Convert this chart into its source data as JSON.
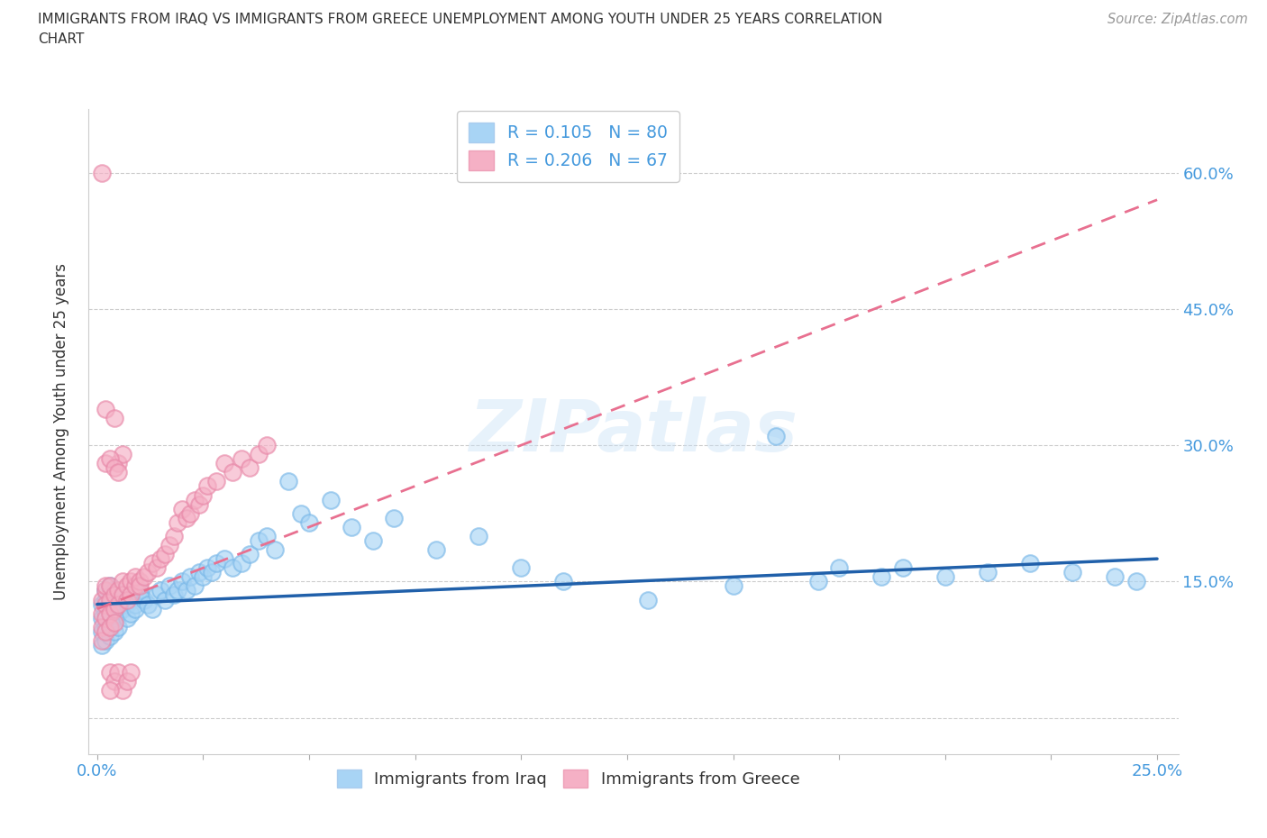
{
  "title": "IMMIGRANTS FROM IRAQ VS IMMIGRANTS FROM GREECE UNEMPLOYMENT AMONG YOUTH UNDER 25 YEARS CORRELATION\nCHART",
  "source_text": "Source: ZipAtlas.com",
  "ylabel": "Unemployment Among Youth under 25 years",
  "xlim": [
    -0.002,
    0.255
  ],
  "ylim": [
    -0.04,
    0.67
  ],
  "iraq_color": "#a8d4f5",
  "iraq_edge_color": "#7ab8e8",
  "greece_color": "#f5b0c5",
  "greece_edge_color": "#e888a8",
  "iraq_line_color": "#2060aa",
  "greece_line_color": "#e87090",
  "R_iraq": 0.105,
  "N_iraq": 80,
  "R_greece": 0.206,
  "N_greece": 67,
  "watermark": "ZIPatlas",
  "grid_color": "#cccccc",
  "tick_color": "#4499dd",
  "label_color": "#333333",
  "source_color": "#999999",
  "iraq_x": [
    0.001,
    0.001,
    0.001,
    0.001,
    0.002,
    0.002,
    0.002,
    0.002,
    0.002,
    0.003,
    0.003,
    0.003,
    0.003,
    0.003,
    0.004,
    0.004,
    0.004,
    0.004,
    0.005,
    0.005,
    0.005,
    0.006,
    0.006,
    0.007,
    0.007,
    0.008,
    0.008,
    0.009,
    0.009,
    0.01,
    0.01,
    0.011,
    0.012,
    0.013,
    0.014,
    0.015,
    0.016,
    0.017,
    0.018,
    0.019,
    0.02,
    0.021,
    0.022,
    0.023,
    0.024,
    0.025,
    0.026,
    0.027,
    0.028,
    0.03,
    0.032,
    0.034,
    0.036,
    0.038,
    0.04,
    0.042,
    0.045,
    0.048,
    0.05,
    0.055,
    0.06,
    0.065,
    0.07,
    0.08,
    0.09,
    0.1,
    0.11,
    0.13,
    0.15,
    0.17,
    0.19,
    0.2,
    0.21,
    0.22,
    0.23,
    0.24,
    0.16,
    0.175,
    0.185,
    0.245
  ],
  "iraq_y": [
    0.125,
    0.11,
    0.095,
    0.08,
    0.13,
    0.115,
    0.1,
    0.085,
    0.14,
    0.12,
    0.105,
    0.09,
    0.135,
    0.145,
    0.125,
    0.11,
    0.095,
    0.14,
    0.13,
    0.115,
    0.1,
    0.135,
    0.12,
    0.125,
    0.11,
    0.13,
    0.115,
    0.125,
    0.12,
    0.135,
    0.14,
    0.13,
    0.125,
    0.12,
    0.135,
    0.14,
    0.13,
    0.145,
    0.135,
    0.14,
    0.15,
    0.14,
    0.155,
    0.145,
    0.16,
    0.155,
    0.165,
    0.16,
    0.17,
    0.175,
    0.165,
    0.17,
    0.18,
    0.195,
    0.2,
    0.185,
    0.26,
    0.225,
    0.215,
    0.24,
    0.21,
    0.195,
    0.22,
    0.185,
    0.2,
    0.165,
    0.15,
    0.13,
    0.145,
    0.15,
    0.165,
    0.155,
    0.16,
    0.17,
    0.16,
    0.155,
    0.31,
    0.165,
    0.155,
    0.15
  ],
  "greece_x": [
    0.001,
    0.001,
    0.001,
    0.001,
    0.002,
    0.002,
    0.002,
    0.002,
    0.002,
    0.003,
    0.003,
    0.003,
    0.003,
    0.004,
    0.004,
    0.004,
    0.005,
    0.005,
    0.006,
    0.006,
    0.007,
    0.007,
    0.008,
    0.008,
    0.009,
    0.009,
    0.01,
    0.01,
    0.011,
    0.012,
    0.013,
    0.014,
    0.015,
    0.016,
    0.017,
    0.018,
    0.019,
    0.02,
    0.021,
    0.022,
    0.023,
    0.024,
    0.025,
    0.026,
    0.028,
    0.03,
    0.032,
    0.034,
    0.036,
    0.038,
    0.04,
    0.001,
    0.002,
    0.003,
    0.004,
    0.005,
    0.006,
    0.007,
    0.008,
    0.003,
    0.004,
    0.005,
    0.006,
    0.002,
    0.003,
    0.004,
    0.005
  ],
  "greece_y": [
    0.13,
    0.115,
    0.1,
    0.085,
    0.14,
    0.125,
    0.11,
    0.095,
    0.145,
    0.13,
    0.115,
    0.1,
    0.145,
    0.135,
    0.12,
    0.105,
    0.14,
    0.125,
    0.15,
    0.135,
    0.145,
    0.13,
    0.15,
    0.135,
    0.145,
    0.155,
    0.15,
    0.145,
    0.155,
    0.16,
    0.17,
    0.165,
    0.175,
    0.18,
    0.19,
    0.2,
    0.215,
    0.23,
    0.22,
    0.225,
    0.24,
    0.235,
    0.245,
    0.255,
    0.26,
    0.28,
    0.27,
    0.285,
    0.275,
    0.29,
    0.3,
    0.6,
    0.34,
    0.05,
    0.04,
    0.05,
    0.03,
    0.04,
    0.05,
    0.03,
    0.33,
    0.28,
    0.29,
    0.28,
    0.285,
    0.275,
    0.27
  ]
}
